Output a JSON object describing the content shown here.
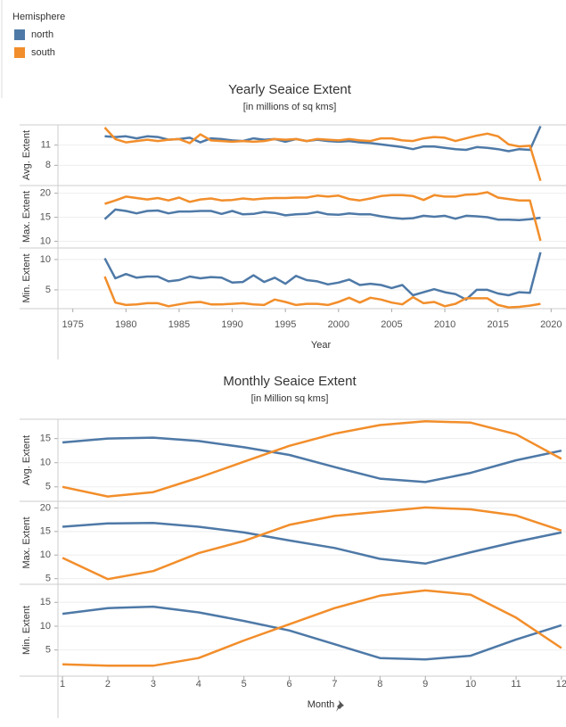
{
  "legend": {
    "title": "Hemisphere"
  },
  "chart_data": [
    {
      "type": "line",
      "title": "Yearly Seaice Extent",
      "subtitle": "[in millions of sq kms]",
      "x_label": "Year",
      "x": [
        1978,
        1979,
        1980,
        1981,
        1982,
        1983,
        1984,
        1985,
        1986,
        1987,
        1988,
        1989,
        1990,
        1991,
        1992,
        1993,
        1994,
        1995,
        1996,
        1997,
        1998,
        1999,
        2000,
        2001,
        2002,
        2003,
        2004,
        2005,
        2006,
        2007,
        2008,
        2009,
        2010,
        2011,
        2012,
        2013,
        2014,
        2015,
        2016,
        2017,
        2018,
        2019
      ],
      "xlim": [
        1973.6,
        2021.4
      ],
      "xticks": [
        1975,
        1980,
        1985,
        1990,
        1995,
        2000,
        2005,
        2010,
        2015,
        2020
      ],
      "grid": true,
      "panels": [
        {
          "y_label": "Avg. Extent",
          "ylim": [
            5,
            14
          ],
          "yticks": [
            8,
            11
          ],
          "series": [
            {
              "name": "north",
              "color": "#4e79a7",
              "values": [
                12.3,
                12.2,
                12.3,
                12.0,
                12.3,
                12.2,
                11.8,
                11.9,
                12.1,
                11.4,
                12.0,
                11.9,
                11.7,
                11.6,
                12.0,
                11.8,
                11.9,
                11.5,
                11.9,
                11.6,
                11.8,
                11.6,
                11.5,
                11.6,
                11.4,
                11.3,
                11.1,
                10.9,
                10.7,
                10.4,
                10.8,
                10.8,
                10.6,
                10.4,
                10.3,
                10.7,
                10.6,
                10.4,
                10.1,
                10.4,
                10.3,
                13.8
              ]
            },
            {
              "name": "south",
              "color": "#f28e2b",
              "values": [
                13.6,
                11.9,
                11.4,
                11.6,
                11.8,
                11.6,
                11.8,
                11.9,
                11.3,
                12.6,
                11.7,
                11.6,
                11.5,
                11.6,
                11.5,
                11.6,
                11.9,
                11.8,
                11.9,
                11.6,
                11.9,
                11.8,
                11.7,
                11.9,
                11.7,
                11.6,
                12.0,
                12.0,
                11.7,
                11.6,
                12.0,
                12.2,
                12.1,
                11.6,
                12.0,
                12.4,
                12.7,
                12.3,
                11.1,
                10.8,
                10.9,
                5.7
              ]
            }
          ]
        },
        {
          "y_label": "Max. Extent",
          "ylim": [
            8.6,
            21.6
          ],
          "yticks": [
            10,
            15,
            20
          ],
          "series": [
            {
              "name": "north",
              "color": "#4e79a7",
              "values": [
                14.6,
                16.6,
                16.3,
                15.8,
                16.3,
                16.4,
                15.8,
                16.2,
                16.2,
                16.3,
                16.3,
                15.7,
                16.3,
                15.6,
                15.7,
                16.1,
                15.9,
                15.4,
                15.6,
                15.7,
                16.1,
                15.6,
                15.5,
                15.8,
                15.6,
                15.6,
                15.2,
                14.9,
                14.7,
                14.8,
                15.3,
                15.1,
                15.3,
                14.7,
                15.3,
                15.2,
                15.0,
                14.5,
                14.5,
                14.4,
                14.6,
                14.9
              ]
            },
            {
              "name": "south",
              "color": "#f28e2b",
              "values": [
                17.8,
                18.5,
                19.3,
                19.0,
                18.7,
                19.0,
                18.5,
                19.1,
                18.2,
                18.7,
                18.9,
                18.5,
                18.6,
                18.9,
                18.7,
                18.9,
                19.0,
                19.0,
                19.1,
                19.1,
                19.5,
                19.3,
                19.5,
                18.8,
                18.5,
                18.9,
                19.4,
                19.6,
                19.6,
                19.4,
                18.6,
                19.6,
                19.3,
                19.3,
                19.7,
                19.8,
                20.2,
                19.1,
                18.8,
                18.5,
                18.5,
                10.1
              ]
            }
          ]
        },
        {
          "y_label": "Min. Extent",
          "ylim": [
            1.9,
            11.9
          ],
          "yticks": [
            5,
            10
          ],
          "series": [
            {
              "name": "north",
              "color": "#4e79a7",
              "values": [
                10.2,
                6.9,
                7.6,
                7.0,
                7.2,
                7.2,
                6.4,
                6.6,
                7.2,
                6.9,
                7.1,
                7.0,
                6.2,
                6.3,
                7.4,
                6.3,
                7.0,
                6.0,
                7.3,
                6.6,
                6.4,
                5.9,
                6.2,
                6.7,
                5.8,
                6.0,
                5.8,
                5.3,
                5.8,
                4.1,
                4.6,
                5.1,
                4.6,
                4.3,
                3.4,
                5.0,
                5.0,
                4.4,
                4.1,
                4.6,
                4.5,
                11.2
              ]
            },
            {
              "name": "south",
              "color": "#f28e2b",
              "values": [
                7.2,
                2.9,
                2.5,
                2.6,
                2.8,
                2.8,
                2.3,
                2.6,
                2.9,
                3.0,
                2.6,
                2.6,
                2.7,
                2.8,
                2.6,
                2.5,
                3.4,
                3.0,
                2.5,
                2.7,
                2.7,
                2.5,
                3.0,
                3.7,
                2.9,
                3.7,
                3.4,
                2.9,
                2.6,
                3.8,
                2.8,
                3.0,
                2.3,
                2.7,
                3.6,
                3.6,
                3.6,
                2.5,
                2.1,
                2.2,
                2.4,
                2.7
              ]
            }
          ]
        }
      ]
    },
    {
      "type": "line",
      "title": "Monthly Seaice Extent",
      "subtitle": "[in Million sq kms]",
      "x_label": "Month",
      "x": [
        1,
        2,
        3,
        4,
        5,
        6,
        7,
        8,
        9,
        10,
        11,
        12
      ],
      "xlim": [
        0.9,
        12.1
      ],
      "xticks": [
        1,
        2,
        3,
        4,
        5,
        6,
        7,
        8,
        9,
        10,
        11,
        12
      ],
      "grid": true,
      "panels": [
        {
          "y_label": "Avg. Extent",
          "ylim": [
            2,
            19
          ],
          "yticks": [
            5,
            10,
            15
          ],
          "series": [
            {
              "name": "north",
              "color": "#4e79a7",
              "values": [
                14.2,
                15.0,
                15.2,
                14.5,
                13.2,
                11.6,
                9.1,
                6.7,
                6.0,
                7.9,
                10.5,
                12.5
              ]
            },
            {
              "name": "south",
              "color": "#f28e2b",
              "values": [
                5.0,
                3.0,
                3.9,
                6.9,
                10.2,
                13.5,
                16.0,
                17.8,
                18.6,
                18.3,
                15.9,
                10.8
              ]
            }
          ]
        },
        {
          "y_label": "Max. Extent",
          "ylim": [
            3.8,
            21.4
          ],
          "yticks": [
            5,
            10,
            15,
            20
          ],
          "series": [
            {
              "name": "north",
              "color": "#4e79a7",
              "values": [
                16.0,
                16.7,
                16.8,
                16.0,
                14.8,
                13.1,
                11.5,
                9.2,
                8.2,
                10.6,
                12.8,
                14.8
              ]
            },
            {
              "name": "south",
              "color": "#f28e2b",
              "values": [
                9.4,
                4.9,
                6.6,
                10.4,
                13.0,
                16.4,
                18.3,
                19.2,
                20.1,
                19.7,
                18.4,
                15.2
              ]
            }
          ]
        },
        {
          "y_label": "Min. Extent",
          "ylim": [
            -0.5,
            18.8
          ],
          "yticks": [
            5,
            10,
            15
          ],
          "series": [
            {
              "name": "north",
              "color": "#4e79a7",
              "values": [
                12.6,
                13.8,
                14.1,
                12.9,
                11.1,
                9.1,
                6.2,
                3.3,
                3.0,
                3.8,
                7.2,
                10.2
              ]
            },
            {
              "name": "south",
              "color": "#f28e2b",
              "values": [
                2.0,
                1.7,
                1.7,
                3.3,
                7.0,
                10.4,
                13.8,
                16.4,
                17.5,
                16.6,
                11.8,
                5.4
              ]
            }
          ]
        }
      ]
    }
  ]
}
